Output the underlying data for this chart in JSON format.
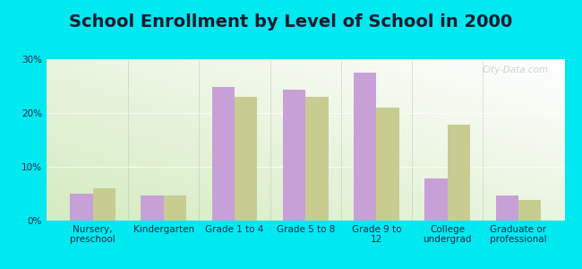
{
  "title": "School Enrollment by Level of School in 2000",
  "categories": [
    "Nursery,\npreschool",
    "Kindergarten",
    "Grade 1 to 4",
    "Grade 5 to 8",
    "Grade 9 to\n12",
    "College\nundergrad",
    "Graduate or\nprofessional"
  ],
  "plainfield_values": [
    5.0,
    4.7,
    24.8,
    24.3,
    27.5,
    7.8,
    4.7
  ],
  "nh_values": [
    6.0,
    4.7,
    23.0,
    23.0,
    21.0,
    17.8,
    3.8
  ],
  "plainfield_color": "#c8a0d8",
  "nh_color": "#c8cc90",
  "background_outer": "#00e8f0",
  "ylim": [
    0,
    30
  ],
  "yticks": [
    0,
    10,
    20,
    30
  ],
  "watermark": "City-Data.com",
  "title_fontsize": 14,
  "tick_fontsize": 7.5,
  "legend_fontsize": 9,
  "title_color": "#1a1a2e",
  "tick_color": "#2a2a4a",
  "bar_width": 0.32
}
